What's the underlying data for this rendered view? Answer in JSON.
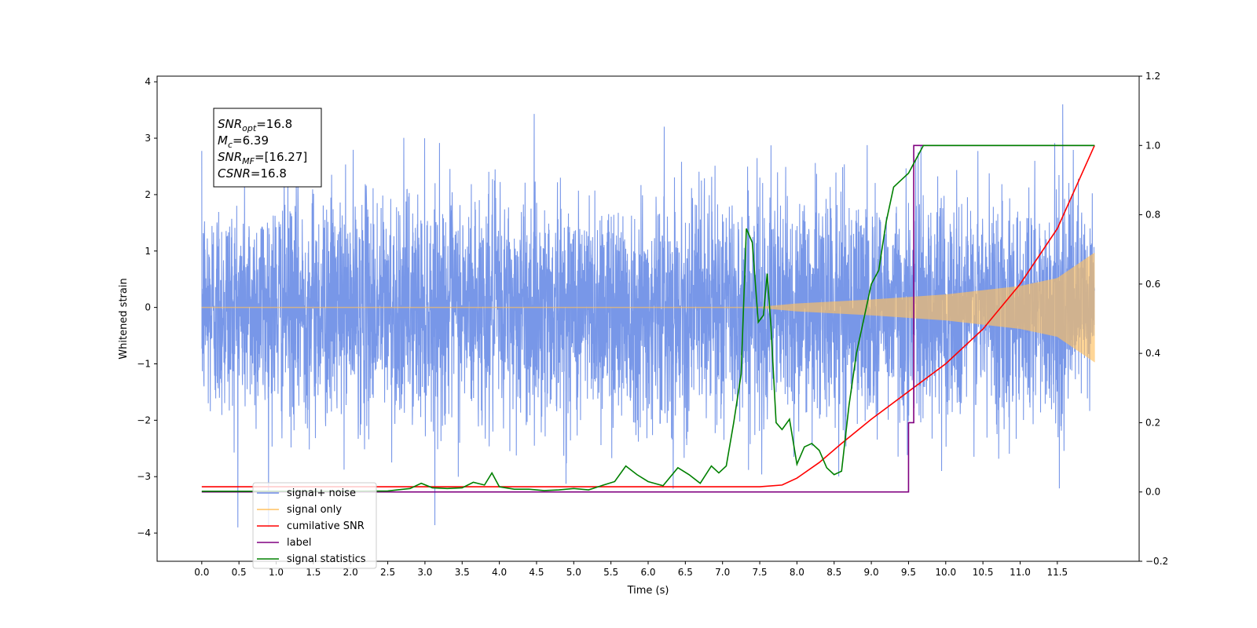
{
  "chart_data": {
    "type": "line",
    "xlabel": "Time (s)",
    "ylabel": "Whitened strain",
    "xlim": [
      -0.6,
      12.6
    ],
    "ylim": [
      -4.5,
      4.1
    ],
    "y2lim": [
      -0.2,
      1.2
    ],
    "x_ticks": [
      "0.0",
      "0.5",
      "1.0",
      "1.5",
      "2.0",
      "2.5",
      "3.0",
      "3.5",
      "4.0",
      "4.5",
      "5.0",
      "5.5",
      "6.0",
      "6.5",
      "7.0",
      "7.5",
      "8.0",
      "8.5",
      "9.0",
      "9.5",
      "10.0",
      "10.5",
      "11.0",
      "11.5"
    ],
    "y_ticks": [
      "4",
      "3",
      "2",
      "1",
      "0",
      "−1",
      "−2",
      "−3",
      "−4"
    ],
    "y2_ticks": [
      "1.2",
      "1.0",
      "0.8",
      "0.6",
      "0.4",
      "0.2",
      "0.0",
      "−0.2"
    ],
    "grid": false,
    "legend_position": "lower-left",
    "annotation": {
      "lines": [
        {
          "sym": "SNR",
          "sub": "opt",
          "val": "=16.8"
        },
        {
          "sym": "M",
          "sub": "c",
          "val": "=6.39"
        },
        {
          "sym": "SNR",
          "sub": "MF",
          "val": "=[16.27]"
        },
        {
          "sym": "CSNR",
          "sub": "",
          "val": "=16.8"
        }
      ]
    },
    "series": [
      {
        "name": "signal+ noise",
        "color": "#6d8ee6",
        "axis": "left",
        "kind": "noise",
        "duration": [
          0,
          12
        ],
        "amplitude_typical": 1.0,
        "peak_values": [
          3.7,
          -4.1
        ]
      },
      {
        "name": "signal only",
        "color": "#ffc060",
        "axis": "left",
        "kind": "chirp",
        "envelope": {
          "t": [
            0,
            7.5,
            8.0,
            9.0,
            10.0,
            11.0,
            11.5,
            12.0
          ],
          "a": [
            0.01,
            0.01,
            0.07,
            0.14,
            0.23,
            0.38,
            0.52,
            0.97
          ]
        }
      },
      {
        "name": "cumilative SNR",
        "color": "#ff0000",
        "axis": "right",
        "x": [
          0,
          7.5,
          7.8,
          8.0,
          8.3,
          8.6,
          9.0,
          9.5,
          10.0,
          10.5,
          11.0,
          11.5,
          12.0
        ],
        "y": [
          0.015,
          0.015,
          0.02,
          0.04,
          0.085,
          0.14,
          0.21,
          0.29,
          0.37,
          0.47,
          0.6,
          0.76,
          1.0
        ]
      },
      {
        "name": "label",
        "color": "#800080",
        "axis": "right",
        "x": [
          0,
          9.5,
          9.5,
          9.57,
          9.57,
          12.0
        ],
        "y": [
          0.0,
          0.0,
          0.2,
          0.2,
          1.0,
          1.0
        ]
      },
      {
        "name": "signal statistics",
        "color": "#008000",
        "axis": "right",
        "x": [
          0,
          0.5,
          1.0,
          1.5,
          2.0,
          2.5,
          2.8,
          2.95,
          3.1,
          3.3,
          3.5,
          3.65,
          3.8,
          3.9,
          4.0,
          4.2,
          4.4,
          4.6,
          4.8,
          5.0,
          5.2,
          5.4,
          5.55,
          5.7,
          5.85,
          6.0,
          6.2,
          6.4,
          6.55,
          6.7,
          6.85,
          6.95,
          7.05,
          7.15,
          7.25,
          7.32,
          7.4,
          7.48,
          7.55,
          7.6,
          7.65,
          7.72,
          7.8,
          7.9,
          8.0,
          8.1,
          8.2,
          8.3,
          8.4,
          8.5,
          8.6,
          8.7,
          8.8,
          8.9,
          9.0,
          9.1,
          9.2,
          9.3,
          9.4,
          9.5,
          9.6,
          9.7,
          10.0,
          10.5,
          11.0,
          11.5,
          12.0
        ],
        "y": [
          0.002,
          0.002,
          0.002,
          0.002,
          0.002,
          0.003,
          0.01,
          0.025,
          0.012,
          0.01,
          0.012,
          0.028,
          0.02,
          0.055,
          0.015,
          0.008,
          0.008,
          0.004,
          0.006,
          0.01,
          0.006,
          0.02,
          0.03,
          0.075,
          0.05,
          0.03,
          0.018,
          0.07,
          0.05,
          0.025,
          0.075,
          0.055,
          0.075,
          0.2,
          0.34,
          0.76,
          0.72,
          0.49,
          0.51,
          0.63,
          0.48,
          0.2,
          0.18,
          0.21,
          0.08,
          0.13,
          0.14,
          0.12,
          0.07,
          0.05,
          0.06,
          0.25,
          0.4,
          0.5,
          0.6,
          0.64,
          0.78,
          0.88,
          0.9,
          0.92,
          0.96,
          1.0,
          1.0,
          1.0,
          1.0,
          1.0,
          1.0
        ]
      }
    ]
  }
}
